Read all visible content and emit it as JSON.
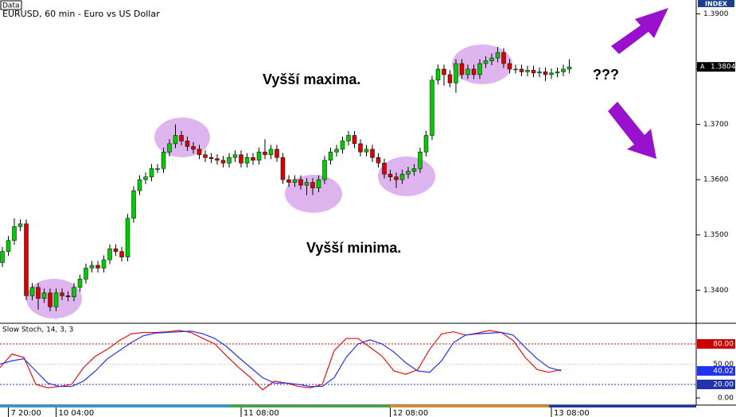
{
  "chart_data": [
    {
      "type": "candlestick",
      "title": "EURUSD, 60 min - Euro vs US Dollar",
      "data_label": "Data",
      "index_label": "INDEX",
      "up_color": "#00cc00",
      "down_color": "#dd0000",
      "ohlc": [
        [
          1.345,
          1.3478,
          1.3442,
          1.347
        ],
        [
          1.347,
          1.3498,
          1.3462,
          1.349
        ],
        [
          1.349,
          1.353,
          1.3482,
          1.3515
        ],
        [
          1.3515,
          1.3528,
          1.3507,
          1.352
        ],
        [
          1.352,
          1.3528,
          1.3382,
          1.339
        ],
        [
          1.339,
          1.3413,
          1.3382,
          1.3405
        ],
        [
          1.3405,
          1.3413,
          1.3365,
          1.3385
        ],
        [
          1.3385,
          1.3403,
          1.3377,
          1.3395
        ],
        [
          1.3395,
          1.3403,
          1.3362,
          1.337
        ],
        [
          1.337,
          1.3403,
          1.3362,
          1.3395
        ],
        [
          1.3395,
          1.3403,
          1.3382,
          1.339
        ],
        [
          1.339,
          1.3398,
          1.338,
          1.3388
        ],
        [
          1.3388,
          1.3413,
          1.338,
          1.3405
        ],
        [
          1.3405,
          1.3428,
          1.3397,
          1.342
        ],
        [
          1.342,
          1.3448,
          1.3412,
          1.344
        ],
        [
          1.344,
          1.3453,
          1.3432,
          1.3445
        ],
        [
          1.3445,
          1.3453,
          1.3432,
          1.344
        ],
        [
          1.344,
          1.3463,
          1.3432,
          1.3455
        ],
        [
          1.3455,
          1.3483,
          1.3447,
          1.3475
        ],
        [
          1.3475,
          1.3483,
          1.3462,
          1.347
        ],
        [
          1.347,
          1.3478,
          1.3452,
          1.346
        ],
        [
          1.346,
          1.3538,
          1.3452,
          1.353
        ],
        [
          1.353,
          1.3588,
          1.3522,
          1.358
        ],
        [
          1.358,
          1.3608,
          1.3572,
          1.36
        ],
        [
          1.36,
          1.3613,
          1.3592,
          1.3605
        ],
        [
          1.3605,
          1.3628,
          1.3597,
          1.362
        ],
        [
          1.362,
          1.3628,
          1.3612,
          1.362
        ],
        [
          1.362,
          1.3658,
          1.3612,
          1.365
        ],
        [
          1.365,
          1.3673,
          1.3642,
          1.3665
        ],
        [
          1.3665,
          1.37,
          1.3657,
          1.368
        ],
        [
          1.368,
          1.3688,
          1.3662,
          1.367
        ],
        [
          1.367,
          1.3678,
          1.3652,
          1.366
        ],
        [
          1.366,
          1.3668,
          1.3647,
          1.3655
        ],
        [
          1.3655,
          1.3663,
          1.3637,
          1.3645
        ],
        [
          1.3645,
          1.3653,
          1.3632,
          1.364
        ],
        [
          1.364,
          1.3648,
          1.363,
          1.3638
        ],
        [
          1.3638,
          1.3646,
          1.3627,
          1.3635
        ],
        [
          1.3635,
          1.3643,
          1.3622,
          1.363
        ],
        [
          1.363,
          1.3648,
          1.3622,
          1.364
        ],
        [
          1.364,
          1.3653,
          1.3632,
          1.3645
        ],
        [
          1.3645,
          1.3653,
          1.3622,
          1.363
        ],
        [
          1.363,
          1.3648,
          1.3622,
          1.364
        ],
        [
          1.364,
          1.3648,
          1.3627,
          1.3635
        ],
        [
          1.3635,
          1.3658,
          1.3627,
          1.365
        ],
        [
          1.365,
          1.3673,
          1.3637,
          1.3645
        ],
        [
          1.3645,
          1.3663,
          1.3637,
          1.3655
        ],
        [
          1.3655,
          1.3663,
          1.3632,
          1.364
        ],
        [
          1.364,
          1.3648,
          1.3592,
          1.36
        ],
        [
          1.36,
          1.3608,
          1.3587,
          1.3595
        ],
        [
          1.3595,
          1.3608,
          1.3587,
          1.36
        ],
        [
          1.36,
          1.3608,
          1.3582,
          1.359
        ],
        [
          1.359,
          1.3603,
          1.3572,
          1.3595
        ],
        [
          1.3595,
          1.3603,
          1.3572,
          1.3585
        ],
        [
          1.3585,
          1.3608,
          1.3577,
          1.36
        ],
        [
          1.36,
          1.3643,
          1.3592,
          1.3635
        ],
        [
          1.3635,
          1.3658,
          1.3627,
          1.365
        ],
        [
          1.365,
          1.3663,
          1.3642,
          1.3655
        ],
        [
          1.3655,
          1.3678,
          1.3647,
          1.367
        ],
        [
          1.367,
          1.3688,
          1.3662,
          1.368
        ],
        [
          1.368,
          1.3688,
          1.3657,
          1.3665
        ],
        [
          1.3665,
          1.3673,
          1.3642,
          1.365
        ],
        [
          1.365,
          1.3663,
          1.3642,
          1.3655
        ],
        [
          1.3655,
          1.3663,
          1.3632,
          1.364
        ],
        [
          1.364,
          1.3648,
          1.3622,
          1.363
        ],
        [
          1.363,
          1.3638,
          1.3602,
          1.361
        ],
        [
          1.361,
          1.3618,
          1.3597,
          1.3605
        ],
        [
          1.3605,
          1.3613,
          1.3585,
          1.36
        ],
        [
          1.36,
          1.3618,
          1.3592,
          1.361
        ],
        [
          1.361,
          1.3623,
          1.3602,
          1.3615
        ],
        [
          1.3615,
          1.3628,
          1.3607,
          1.362
        ],
        [
          1.362,
          1.3658,
          1.3612,
          1.365
        ],
        [
          1.365,
          1.3688,
          1.3642,
          1.368
        ],
        [
          1.368,
          1.3788,
          1.3672,
          1.378
        ],
        [
          1.378,
          1.3808,
          1.3772,
          1.38
        ],
        [
          1.38,
          1.3808,
          1.377,
          1.379
        ],
        [
          1.379,
          1.3798,
          1.3767,
          1.3775
        ],
        [
          1.3775,
          1.3818,
          1.3757,
          1.381
        ],
        [
          1.381,
          1.3818,
          1.3782,
          1.379
        ],
        [
          1.379,
          1.3808,
          1.3782,
          1.38
        ],
        [
          1.38,
          1.3808,
          1.3782,
          1.379
        ],
        [
          1.379,
          1.3818,
          1.3782,
          1.381
        ],
        [
          1.381,
          1.3823,
          1.3802,
          1.3815
        ],
        [
          1.3815,
          1.3828,
          1.3807,
          1.382
        ],
        [
          1.382,
          1.384,
          1.3812,
          1.383
        ],
        [
          1.383,
          1.3838,
          1.3802,
          1.381
        ],
        [
          1.381,
          1.3818,
          1.3792,
          1.38
        ],
        [
          1.38,
          1.3808,
          1.3792,
          1.38
        ],
        [
          1.38,
          1.3808,
          1.3787,
          1.3795
        ],
        [
          1.3795,
          1.3806,
          1.3787,
          1.3798
        ],
        [
          1.3798,
          1.3806,
          1.3785,
          1.3793
        ],
        [
          1.3793,
          1.3803,
          1.3785,
          1.3795
        ],
        [
          1.3795,
          1.3803,
          1.3778,
          1.379
        ],
        [
          1.379,
          1.3801,
          1.3782,
          1.3793
        ],
        [
          1.3793,
          1.3803,
          1.3785,
          1.3795
        ],
        [
          1.3795,
          1.3808,
          1.3787,
          1.38
        ],
        [
          1.38,
          1.3818,
          1.3792,
          1.3804
        ]
      ],
      "ylim": [
        1.3343,
        1.3925
      ],
      "yticks": [
        {
          "value": 1.34,
          "label": "1.3400"
        },
        {
          "value": 1.35,
          "label": "1.3500"
        },
        {
          "value": 1.36,
          "label": "1.3600"
        },
        {
          "value": 1.37,
          "label": "1.3700"
        },
        {
          "value": 1.38,
          "label": "1.3800"
        },
        {
          "value": 1.39,
          "label": "1.3900"
        }
      ],
      "last_price": 1.3804,
      "last_price_marker": "A",
      "xticks": [
        {
          "value": 1,
          "label": "7 20:00"
        },
        {
          "value": 9,
          "label": "10 04:00"
        },
        {
          "value": 40,
          "label": "11 08:00"
        },
        {
          "value": 65,
          "label": "12 08:00"
        },
        {
          "value": 92,
          "label": "13 08:00"
        }
      ],
      "annotations": [
        "Vyšší maxima.",
        "Vyšší minima.",
        "???"
      ]
    },
    {
      "type": "line",
      "title": "Slow Stoch, 14, 3, 3",
      "series": [
        {
          "color": "#ee1111",
          "values": [
            45,
            65,
            60,
            20,
            15,
            17,
            20,
            45,
            62,
            72,
            85,
            95,
            97,
            97,
            98,
            100,
            97,
            88,
            80,
            62,
            45,
            30,
            12,
            25,
            22,
            17,
            15,
            20,
            70,
            88,
            88,
            75,
            62,
            40,
            35,
            42,
            72,
            95,
            98,
            93,
            96,
            100,
            97,
            85,
            60,
            42,
            38,
            42
          ]
        },
        {
          "color": "#2233ee",
          "values": [
            50,
            55,
            58,
            40,
            22,
            17,
            17,
            25,
            40,
            58,
            70,
            82,
            92,
            96,
            97,
            98,
            99,
            95,
            88,
            76,
            60,
            45,
            30,
            22,
            22,
            20,
            17,
            17,
            30,
            60,
            80,
            86,
            80,
            68,
            52,
            40,
            38,
            55,
            82,
            93,
            95,
            96,
            97,
            93,
            75,
            58,
            45,
            40.02
          ]
        }
      ],
      "ylim": [
        -10.6,
        109.4
      ],
      "yticks": [
        {
          "value": 0,
          "label": "0.00"
        },
        {
          "value": 20,
          "label": "20.00"
        },
        {
          "value": 50,
          "label": "50.00"
        },
        {
          "value": 80,
          "label": "80.00"
        }
      ],
      "last_value": 40.02
    }
  ]
}
